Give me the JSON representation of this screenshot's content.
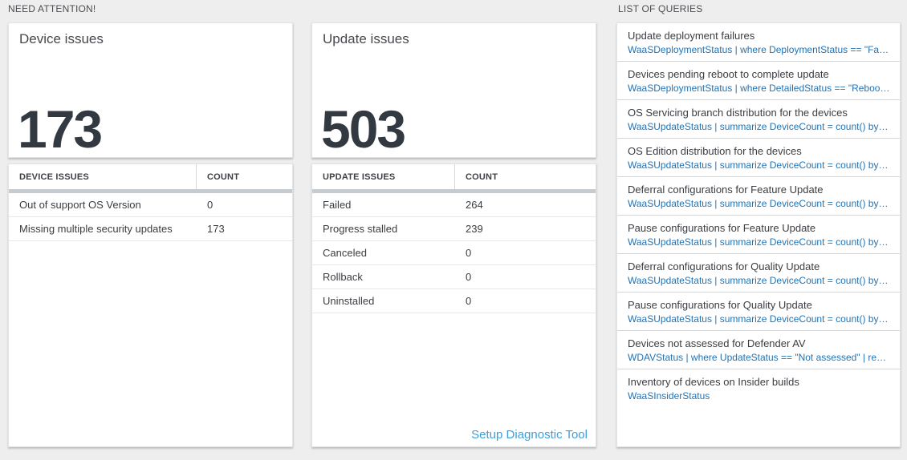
{
  "sections": {
    "need_attention": "NEED ATTENTION!",
    "list_of_queries": "LIST OF QUERIES"
  },
  "device_tile": {
    "title": "Device issues",
    "count": "173"
  },
  "update_tile": {
    "title": "Update issues",
    "count": "503"
  },
  "device_table": {
    "headers": [
      "DEVICE ISSUES",
      "COUNT"
    ],
    "rows": [
      {
        "label": "Out of support OS Version",
        "count": "0"
      },
      {
        "label": "Missing multiple security updates",
        "count": "173"
      }
    ]
  },
  "update_table": {
    "headers": [
      "UPDATE ISSUES",
      "COUNT"
    ],
    "rows": [
      {
        "label": "Failed",
        "count": "264"
      },
      {
        "label": "Progress stalled",
        "count": "239"
      },
      {
        "label": "Canceled",
        "count": "0"
      },
      {
        "label": "Rollback",
        "count": "0"
      },
      {
        "label": "Uninstalled",
        "count": "0"
      }
    ],
    "footer_link": "Setup Diagnostic Tool"
  },
  "queries": [
    {
      "name": "Update deployment failures",
      "query": "WaaSDeploymentStatus | where DeploymentStatus == \"Failed\" |..."
    },
    {
      "name": "Devices pending reboot to complete update",
      "query": "WaaSDeploymentStatus | where DetailedStatus == \"Reboot pend..."
    },
    {
      "name": "OS Servicing branch distribution for the devices",
      "query": "WaaSUpdateStatus | summarize DeviceCount = count() by OSSer..."
    },
    {
      "name": "OS Edition distribution for the devices",
      "query": "WaaSUpdateStatus | summarize DeviceCount = count() by OSEdit..."
    },
    {
      "name": "Deferral configurations for Feature Update",
      "query": "WaaSUpdateStatus | summarize DeviceCount = count() by Featur..."
    },
    {
      "name": "Pause configurations for Feature Update",
      "query": "WaaSUpdateStatus | summarize DeviceCount = count() by Featur..."
    },
    {
      "name": "Deferral configurations for Quality Update",
      "query": "WaaSUpdateStatus | summarize DeviceCount = count() by Qualit..."
    },
    {
      "name": "Pause configurations for Quality Update",
      "query": "WaaSUpdateStatus | summarize DeviceCount = count() by Qualit..."
    },
    {
      "name": "Devices not assessed for Defender AV",
      "query": "WDAVStatus | where UpdateStatus == \"Not assessed\" | render ta..."
    },
    {
      "name": "Inventory of devices on Insider builds",
      "query": "WaaSInsiderStatus"
    }
  ],
  "colors": {
    "page-bg": "#eeeeee",
    "tile-bg": "#ffffff",
    "count-color": "#333940",
    "divider-bar": "#c6cbd0",
    "query-link": "#2373b4",
    "footer-link": "#3b9fdb"
  }
}
